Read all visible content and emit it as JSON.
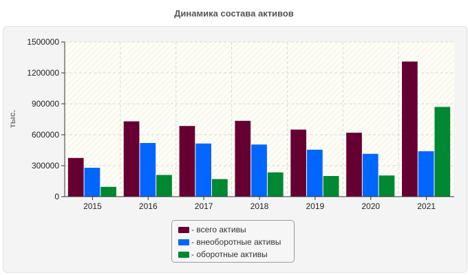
{
  "chart_data": {
    "type": "bar",
    "title": "Динамика состава активов",
    "ylabel": "тыс.",
    "xlabel": "",
    "categories": [
      "2015",
      "2016",
      "2017",
      "2018",
      "2019",
      "2020",
      "2021"
    ],
    "series": [
      {
        "name": "- всего активы",
        "color": "#660033",
        "values": [
          375000,
          730000,
          685000,
          735000,
          650000,
          620000,
          1310000
        ]
      },
      {
        "name": "- внеоборотные активы",
        "color": "#0066ff",
        "values": [
          280000,
          520000,
          515000,
          505000,
          455000,
          415000,
          440000
        ]
      },
      {
        "name": "- оборотные активы",
        "color": "#008833",
        "values": [
          95000,
          210000,
          170000,
          235000,
          200000,
          205000,
          870000
        ]
      }
    ],
    "ylim": [
      0,
      1500000
    ],
    "yticks": [
      "0",
      "300000",
      "600000",
      "900000",
      "1200000",
      "1500000"
    ],
    "grid": true,
    "legend_position": "bottom-center"
  }
}
